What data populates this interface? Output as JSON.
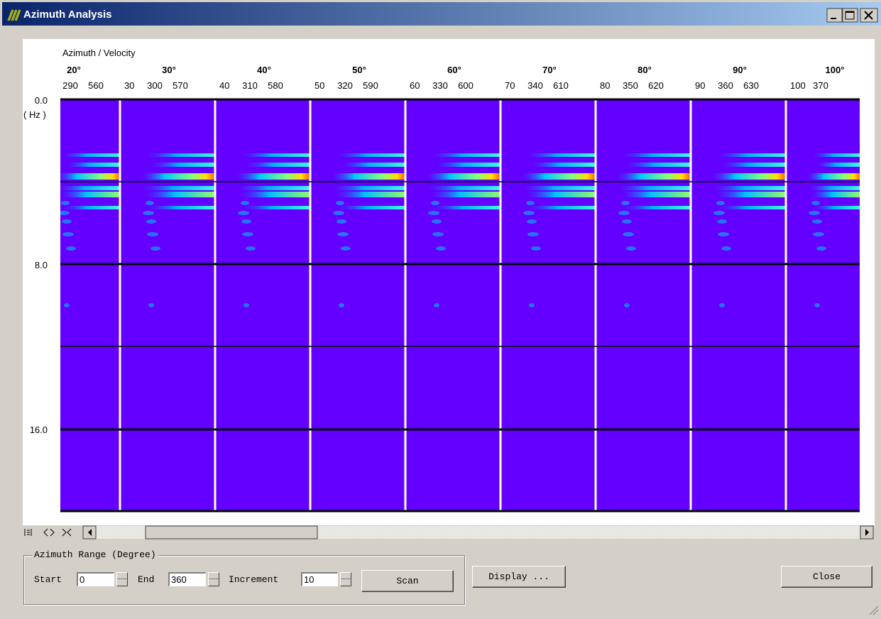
{
  "window": {
    "title": "Azimuth Analysis"
  },
  "plot": {
    "axis_title": "Azimuth / Velocity",
    "panels": [
      {
        "azimuth": "20°",
        "velocities": [
          "290",
          "560"
        ]
      },
      {
        "azimuth": "30°",
        "velocities": [
          "30",
          "300",
          "570"
        ]
      },
      {
        "azimuth": "40°",
        "velocities": [
          "40",
          "310",
          "580"
        ]
      },
      {
        "azimuth": "50°",
        "velocities": [
          "50",
          "320",
          "590"
        ]
      },
      {
        "azimuth": "60°",
        "velocities": [
          "60",
          "330",
          "600"
        ]
      },
      {
        "azimuth": "70°",
        "velocities": [
          "70",
          "340",
          "610"
        ]
      },
      {
        "azimuth": "80°",
        "velocities": [
          "80",
          "350",
          "620"
        ]
      },
      {
        "azimuth": "90°",
        "velocities": [
          "90",
          "360",
          "630"
        ]
      },
      {
        "azimuth": "100°",
        "velocities": [
          "100",
          "370"
        ]
      }
    ],
    "y_labels": [
      "0.0",
      "8.0",
      "16.0"
    ],
    "y_unit": "( Hz )"
  },
  "controls": {
    "group_title": "Azimuth Range (Degree)",
    "start_label": "Start",
    "start_value": "0",
    "end_label": "End",
    "end_value": "360",
    "increment_label": "Increment",
    "increment_value": "10",
    "scan": "Scan",
    "display": "Display ...",
    "close": "Close"
  }
}
